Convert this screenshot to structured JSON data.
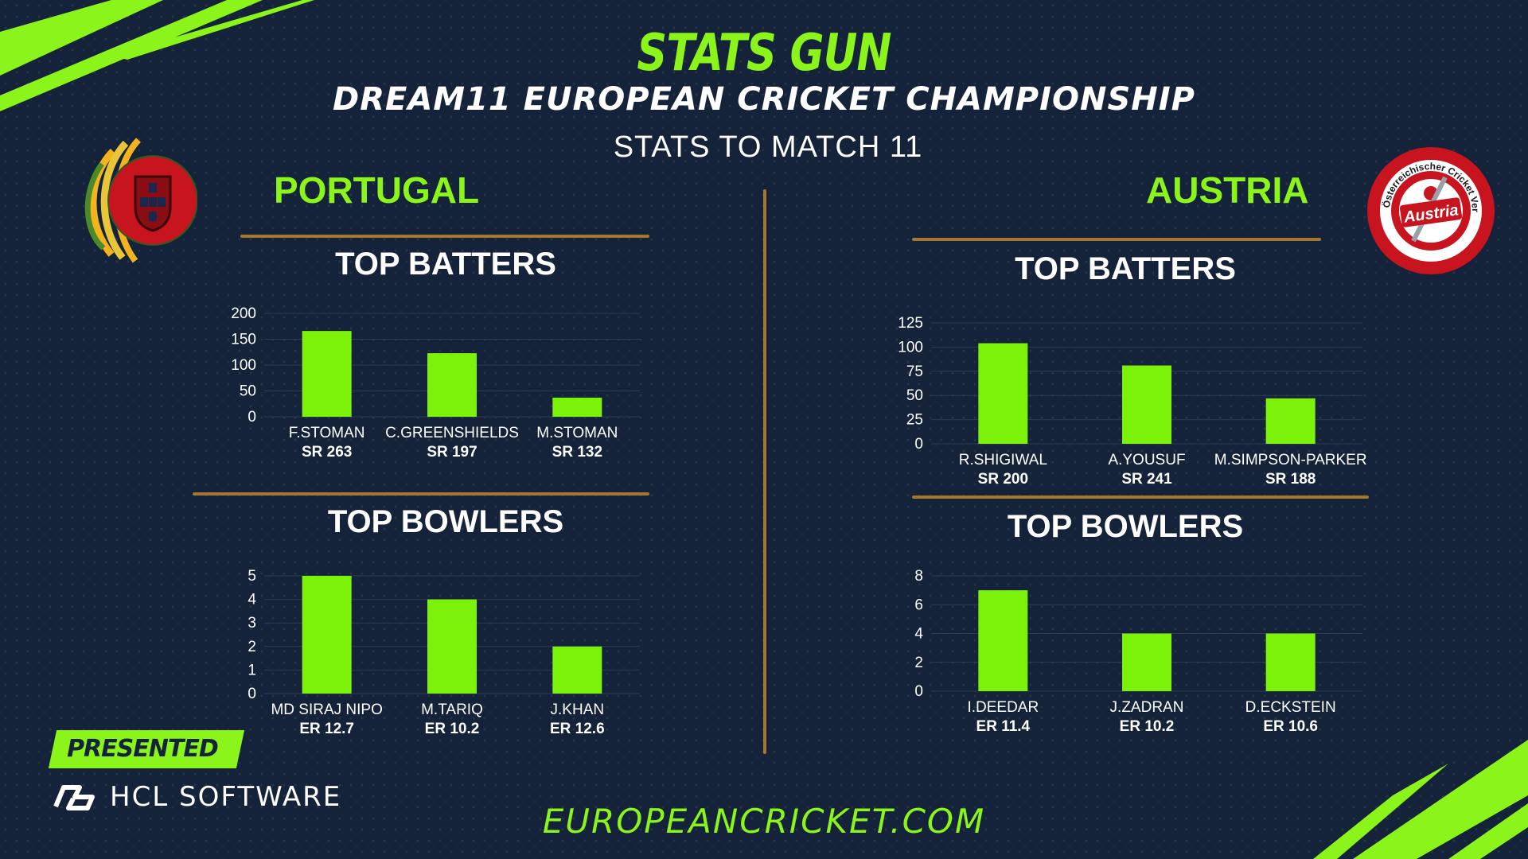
{
  "header": {
    "title": "STATS GUN",
    "subtitle": "DREAM11 EUROPEAN CRICKET CHAMPIONSHIP",
    "stats_label": "STATS TO MATCH 11"
  },
  "left_team": {
    "name": "PORTUGAL",
    "batters_title": "TOP BATTERS",
    "bowlers_title": "TOP BOWLERS",
    "logo_icon": "portugal-cricket-logo"
  },
  "right_team": {
    "name": "AUSTRIA",
    "batters_title": "TOP BATTERS",
    "bowlers_title": "TOP BOWLERS",
    "logo_icon": "austria-cricket-logo",
    "logo_text": "Austria",
    "logo_ring_text": "Österreichischer Cricket Verband"
  },
  "sponsor": {
    "presented_label": "PRESENTED BY",
    "name": "HCL SOFTWARE",
    "logo_icon": "hcl-logo"
  },
  "footer": {
    "url": "EUROPEANCRICKET.COM"
  },
  "colors": {
    "background": "#142339",
    "accent": "#8bf41a",
    "bar": "#7cf20b",
    "rule": "#a6762a",
    "text": "#ffffff"
  },
  "chart_data": [
    {
      "id": "portugal-batters",
      "type": "bar",
      "categories": [
        "F.STOMAN",
        "C.GREENSHIELDS",
        "M.STOMAN"
      ],
      "sublabels": [
        "SR 263",
        "SR 197",
        "SR 132"
      ],
      "values": [
        166,
        123,
        37
      ],
      "ylim": [
        0,
        200
      ],
      "yticks": [
        0,
        50,
        100,
        150,
        200
      ],
      "grid": true
    },
    {
      "id": "portugal-bowlers",
      "type": "bar",
      "categories": [
        "MD SIRAJ NIPO",
        "M.TARIQ",
        "J.KHAN"
      ],
      "sublabels": [
        "ER 12.7",
        "ER 10.2",
        "ER 12.6"
      ],
      "values": [
        5,
        4,
        2
      ],
      "ylim": [
        0,
        5
      ],
      "yticks": [
        0,
        1,
        2,
        3,
        4,
        5
      ],
      "grid": true
    },
    {
      "id": "austria-batters",
      "type": "bar",
      "categories": [
        "R.SHIGIWAL",
        "A.YOUSUF",
        "M.SIMPSON-PARKER"
      ],
      "sublabels": [
        "SR 200",
        "SR 241",
        "SR 188"
      ],
      "values": [
        104,
        81,
        47
      ],
      "ylim": [
        0,
        125
      ],
      "yticks": [
        0,
        25,
        50,
        75,
        100,
        125
      ],
      "grid": true
    },
    {
      "id": "austria-bowlers",
      "type": "bar",
      "categories": [
        "I.DEEDAR",
        "J.ZADRAN",
        "D.ECKSTEIN"
      ],
      "sublabels": [
        "ER 11.4",
        "ER 10.2",
        "ER 10.6"
      ],
      "values": [
        7,
        4,
        4
      ],
      "ylim": [
        0,
        8
      ],
      "yticks": [
        0,
        2,
        4,
        6,
        8
      ],
      "grid": true
    }
  ]
}
